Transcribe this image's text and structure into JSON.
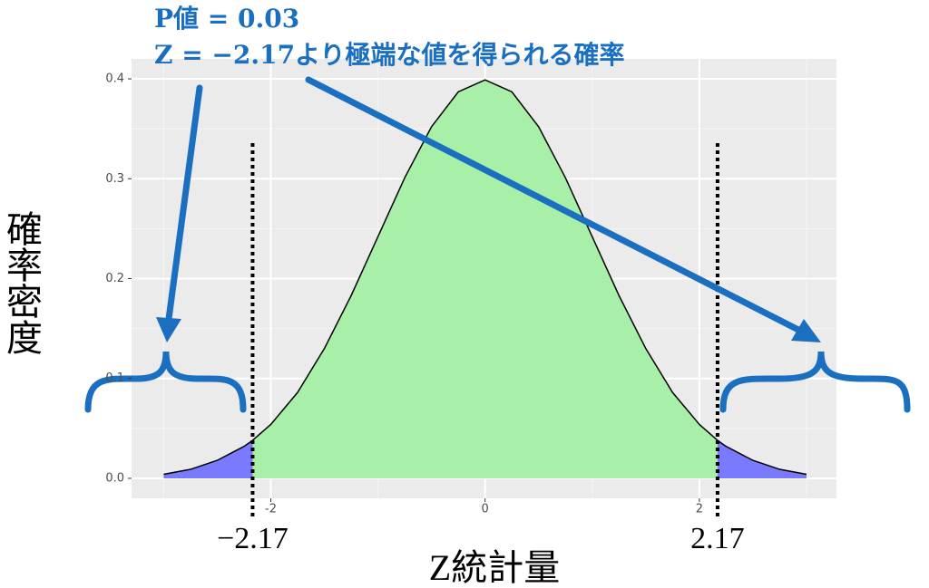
{
  "chart_data": {
    "type": "area",
    "annotations": [
      "P値 = 0.03",
      "Z = −2.17より極端な値を得られる確率"
    ],
    "xlabel": "Z統計量",
    "ylabel": "確率密度",
    "x": [
      -3,
      -2.75,
      -2.5,
      -2.25,
      -2.17,
      -2,
      -1.75,
      -1.5,
      -1.25,
      -1,
      -0.75,
      -0.5,
      -0.25,
      0,
      0.25,
      0.5,
      0.75,
      1,
      1.25,
      1.5,
      1.75,
      2,
      2.17,
      2.25,
      2.5,
      2.75,
      3
    ],
    "values": [
      0.004,
      0.009,
      0.018,
      0.032,
      0.038,
      0.054,
      0.086,
      0.13,
      0.183,
      0.242,
      0.301,
      0.352,
      0.387,
      0.399,
      0.387,
      0.352,
      0.301,
      0.242,
      0.183,
      0.13,
      0.086,
      0.054,
      0.038,
      0.032,
      0.018,
      0.009,
      0.004
    ],
    "color": "#a8f0a8",
    "tail_color": "#7a7aff",
    "line_color": "#000000",
    "critical_values": [
      {
        "value": -2.17,
        "label": "−2.17"
      },
      2.17
    ],
    "xlim": [
      -3.3,
      3.28
    ],
    "ylim": [
      -0.02,
      0.42
    ],
    "xticks": [
      -2,
      0,
      2
    ],
    "yticks": [
      {
        "value": 0,
        "label": "0.0"
      },
      0.1,
      0.2,
      0.3,
      0.4
    ],
    "grid": true
  }
}
